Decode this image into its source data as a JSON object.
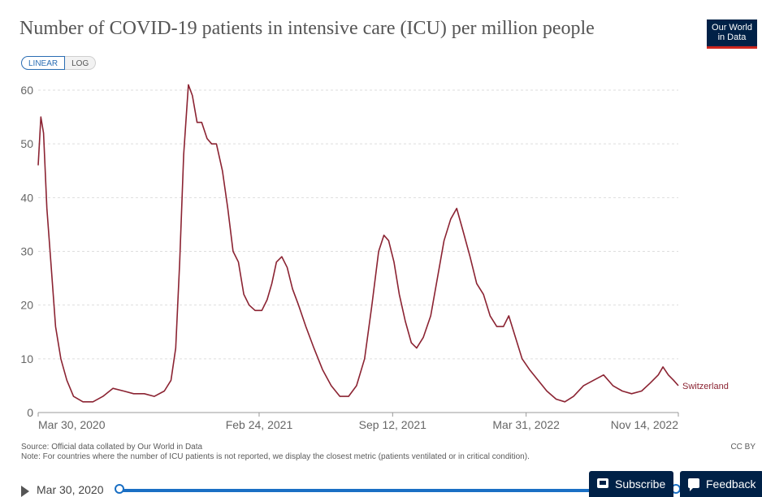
{
  "title": "Number of COVID-19 patients in intensive care (ICU) per million people",
  "logo": {
    "line1": "Our World",
    "line2": "in Data"
  },
  "scale_toggle": {
    "linear": "LINEAR",
    "log": "LOG"
  },
  "footer": {
    "source": "Source: Official data collated by Our World in Data",
    "note": "Note: For countries where the number of ICU patients is not reported, we display the closest metric (patients ventilated or in critical condition).",
    "license": "CC BY"
  },
  "timeline": {
    "start_label": "Mar 30, 2020"
  },
  "buttons": {
    "subscribe": "Subscribe",
    "feedback": "Feedback"
  },
  "colors": {
    "series": "#8b2332",
    "grid": "#dddddd",
    "accent": "#1a6fc4",
    "brand": "#002147"
  },
  "icons": {
    "play": "play-icon",
    "subscribe": "mail-icon",
    "feedback": "chat-icon"
  },
  "chart_data": {
    "type": "line",
    "title": "Number of COVID-19 patients in intensive care (ICU) per million people",
    "xlabel": "",
    "ylabel": "",
    "yticks": [
      0,
      10,
      20,
      30,
      40,
      50,
      60
    ],
    "ylim": [
      0,
      60
    ],
    "xlim": [
      "2020-03-30",
      "2022-11-14"
    ],
    "xticks": [
      {
        "date": "2020-03-30",
        "label": "Mar 30, 2020"
      },
      {
        "date": "2021-02-24",
        "label": "Feb 24, 2021"
      },
      {
        "date": "2021-09-12",
        "label": "Sep 12, 2021"
      },
      {
        "date": "2022-03-31",
        "label": "Mar 31, 2022"
      },
      {
        "date": "2022-11-14",
        "label": "Nov 14, 2022"
      }
    ],
    "grid": true,
    "series": [
      {
        "name": "Switzerland",
        "points": [
          [
            "2020-03-30",
            46
          ],
          [
            "2020-04-03",
            55
          ],
          [
            "2020-04-07",
            52
          ],
          [
            "2020-04-12",
            38
          ],
          [
            "2020-04-18",
            28
          ],
          [
            "2020-04-25",
            16
          ],
          [
            "2020-05-03",
            10
          ],
          [
            "2020-05-12",
            6
          ],
          [
            "2020-05-22",
            3
          ],
          [
            "2020-06-05",
            2
          ],
          [
            "2020-06-20",
            2
          ],
          [
            "2020-07-05",
            3
          ],
          [
            "2020-07-20",
            4.5
          ],
          [
            "2020-08-05",
            4
          ],
          [
            "2020-08-20",
            3.5
          ],
          [
            "2020-09-05",
            3.5
          ],
          [
            "2020-09-20",
            3
          ],
          [
            "2020-10-05",
            4
          ],
          [
            "2020-10-15",
            6
          ],
          [
            "2020-10-22",
            12
          ],
          [
            "2020-10-28",
            28
          ],
          [
            "2020-11-03",
            48
          ],
          [
            "2020-11-10",
            61
          ],
          [
            "2020-11-16",
            59
          ],
          [
            "2020-11-23",
            54
          ],
          [
            "2020-11-30",
            54
          ],
          [
            "2020-12-08",
            51
          ],
          [
            "2020-12-15",
            50
          ],
          [
            "2020-12-22",
            50
          ],
          [
            "2020-12-31",
            45
          ],
          [
            "2021-01-08",
            38
          ],
          [
            "2021-01-16",
            30
          ],
          [
            "2021-01-24",
            28
          ],
          [
            "2021-02-01",
            22
          ],
          [
            "2021-02-09",
            20
          ],
          [
            "2021-02-18",
            19
          ],
          [
            "2021-02-28",
            19
          ],
          [
            "2021-03-08",
            21
          ],
          [
            "2021-03-15",
            24
          ],
          [
            "2021-03-22",
            28
          ],
          [
            "2021-03-30",
            29
          ],
          [
            "2021-04-07",
            27
          ],
          [
            "2021-04-15",
            23
          ],
          [
            "2021-04-24",
            20
          ],
          [
            "2021-05-05",
            16
          ],
          [
            "2021-05-17",
            12
          ],
          [
            "2021-05-30",
            8
          ],
          [
            "2021-06-12",
            5
          ],
          [
            "2021-06-25",
            3
          ],
          [
            "2021-07-08",
            3
          ],
          [
            "2021-07-20",
            5
          ],
          [
            "2021-08-01",
            10
          ],
          [
            "2021-08-12",
            20
          ],
          [
            "2021-08-22",
            30
          ],
          [
            "2021-08-30",
            33
          ],
          [
            "2021-09-06",
            32
          ],
          [
            "2021-09-14",
            28
          ],
          [
            "2021-09-22",
            22
          ],
          [
            "2021-10-01",
            17
          ],
          [
            "2021-10-10",
            13
          ],
          [
            "2021-10-18",
            12
          ],
          [
            "2021-10-28",
            14
          ],
          [
            "2021-11-08",
            18
          ],
          [
            "2021-11-18",
            25
          ],
          [
            "2021-11-28",
            32
          ],
          [
            "2021-12-08",
            36
          ],
          [
            "2021-12-17",
            38
          ],
          [
            "2021-12-26",
            34
          ],
          [
            "2022-01-06",
            29
          ],
          [
            "2022-01-16",
            24
          ],
          [
            "2022-01-26",
            22
          ],
          [
            "2022-02-05",
            18
          ],
          [
            "2022-02-15",
            16
          ],
          [
            "2022-02-25",
            16
          ],
          [
            "2022-03-05",
            18
          ],
          [
            "2022-03-15",
            14
          ],
          [
            "2022-03-25",
            10
          ],
          [
            "2022-04-05",
            8
          ],
          [
            "2022-04-18",
            6
          ],
          [
            "2022-05-01",
            4
          ],
          [
            "2022-05-15",
            2.5
          ],
          [
            "2022-05-28",
            2
          ],
          [
            "2022-06-10",
            3
          ],
          [
            "2022-06-25",
            5
          ],
          [
            "2022-07-10",
            6
          ],
          [
            "2022-07-25",
            7
          ],
          [
            "2022-08-08",
            5
          ],
          [
            "2022-08-22",
            4
          ],
          [
            "2022-09-05",
            3.5
          ],
          [
            "2022-09-20",
            4
          ],
          [
            "2022-10-03",
            5.5
          ],
          [
            "2022-10-15",
            7
          ],
          [
            "2022-10-22",
            8.5
          ],
          [
            "2022-10-30",
            7
          ],
          [
            "2022-11-07",
            6
          ],
          [
            "2022-11-14",
            5
          ]
        ]
      }
    ]
  }
}
